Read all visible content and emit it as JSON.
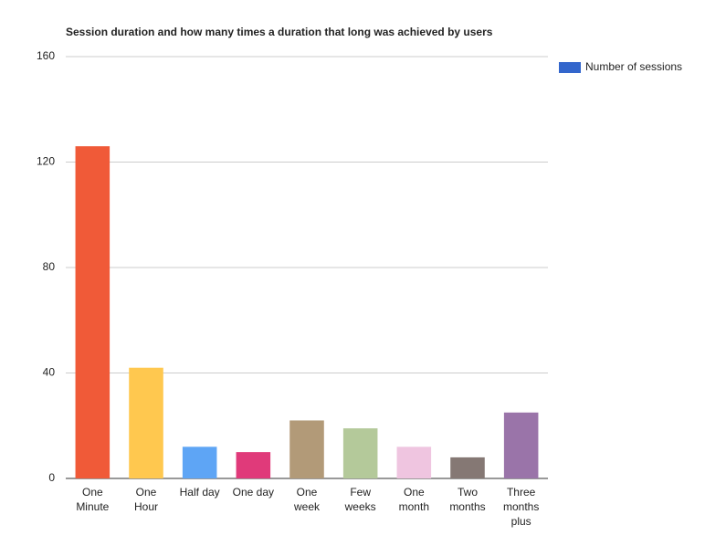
{
  "chart_data": {
    "type": "bar",
    "title": "Session duration and how many times a duration that long was achieved by users",
    "categories": [
      "One Minute",
      "One Hour",
      "Half day",
      "One day",
      "One week",
      "Few weeks",
      "One month",
      "Two months",
      "Three months plus"
    ],
    "series": [
      {
        "name": "Number of sessions",
        "color": "#3366cc",
        "values": [
          126,
          42,
          12,
          10,
          22,
          19,
          12,
          8,
          25
        ]
      }
    ],
    "bar_colors": [
      "#f05a38",
      "#ffc84f",
      "#5ea5f5",
      "#e03a7a",
      "#b29a78",
      "#b4c99a",
      "#efc5e0",
      "#857874",
      "#9a74a9"
    ],
    "ylim": [
      0,
      160
    ],
    "yticks": [
      0,
      40,
      80,
      120,
      160
    ],
    "grid": true,
    "legend": "right"
  }
}
